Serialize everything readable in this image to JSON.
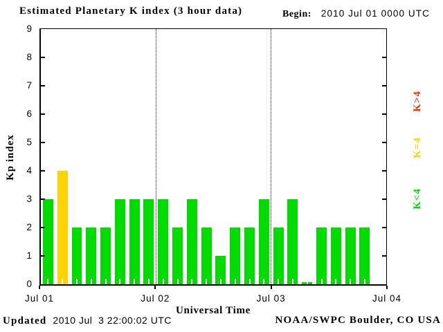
{
  "header": {
    "title": "Estimated Planetary K index (3 hour data)",
    "begin_label": "Begin:",
    "begin_value": "2010 Jul 01 0000 UTC"
  },
  "chart_data": {
    "type": "bar",
    "title": "Estimated Planetary K index (3 hour data)",
    "begin": "2010 Jul 01 0000 UTC",
    "xlabel": "Universal Time",
    "ylabel": "Kp index",
    "ylim": [
      0,
      9
    ],
    "yticks": [
      "0",
      "1",
      "2",
      "3",
      "4",
      "5",
      "6",
      "7",
      "8",
      "9"
    ],
    "x_tick_labels": [
      "Jul 01",
      "Jul 02",
      "Jul 03",
      "Jul 04"
    ],
    "hours_per_bar": 3,
    "slots_per_day": 8,
    "num_days": 3,
    "values": [
      3,
      4,
      2,
      2,
      2,
      3,
      3,
      3,
      3,
      2,
      3,
      2,
      1,
      2,
      2,
      3,
      2,
      3,
      0,
      2,
      2,
      2,
      2,
      null
    ],
    "colors": {
      "k_lt_4": "#00DC00",
      "k_eq_4": "#FFD300",
      "k_gt_4": "#FF2A00"
    },
    "grid": {
      "vertical_day_separators": "dotted"
    },
    "legend_position": "right"
  },
  "legend": {
    "items": [
      {
        "label": "K>4",
        "color": "#FF2A00"
      },
      {
        "label": "K=4",
        "color": "#FFD300"
      },
      {
        "label": "K<4",
        "color": "#00DC00"
      }
    ]
  },
  "footer": {
    "updated_label": "Updated",
    "updated_value": "2010 Jul  3 22:00:02 UTC",
    "credit": "NOAA/SWPC Boulder, CO USA"
  }
}
